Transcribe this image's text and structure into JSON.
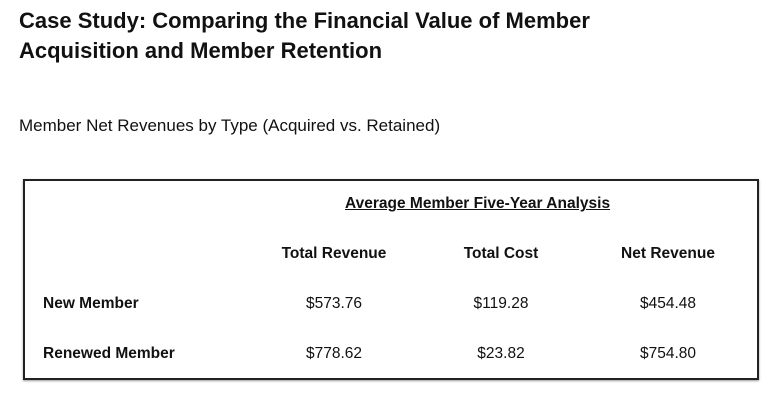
{
  "title_lines": [
    "Case Study: Comparing the Financial Value of Member",
    "Acquisition and Member Retention"
  ],
  "subtitle": "Member Net Revenues by Type (Acquired vs. Retained)",
  "table": {
    "header": "Average Member Five-Year Analysis",
    "columns": [
      "Total Revenue",
      "Total Cost",
      "Net Revenue"
    ],
    "rows": [
      {
        "label": "New Member",
        "values": [
          "$573.76",
          "$119.28",
          "$454.48"
        ]
      },
      {
        "label": "Renewed Member",
        "values": [
          "$778.62",
          "$23.82",
          "$754.80"
        ]
      }
    ]
  }
}
